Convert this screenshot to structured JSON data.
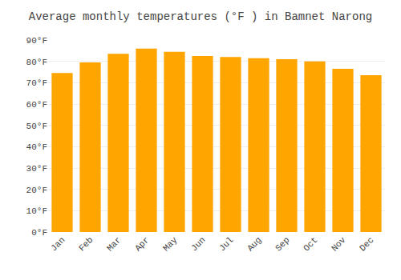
{
  "chart_data": {
    "type": "bar",
    "title": "Average monthly temperatures (°F ) in Bamnet Narong",
    "categories": [
      "Jan",
      "Feb",
      "Mar",
      "Apr",
      "May",
      "Jun",
      "Jul",
      "Aug",
      "Sep",
      "Oct",
      "Nov",
      "Dec"
    ],
    "values": [
      74.5,
      79.5,
      83.5,
      86.0,
      84.5,
      82.5,
      82.0,
      81.5,
      81.0,
      80.0,
      76.5,
      73.5
    ],
    "color": "#FFA500",
    "ylim": [
      0,
      90
    ],
    "yticks": [
      {
        "value": 0,
        "label": "0°F"
      },
      {
        "value": 10,
        "label": "10°F"
      },
      {
        "value": 20,
        "label": "20°F"
      },
      {
        "value": 30,
        "label": "30°F"
      },
      {
        "value": 40,
        "label": "40°F"
      },
      {
        "value": 50,
        "label": "50°F"
      },
      {
        "value": 60,
        "label": "60°F"
      },
      {
        "value": 70,
        "label": "70°F"
      },
      {
        "value": 80,
        "label": "80°F"
      },
      {
        "value": 90,
        "label": "90°F"
      }
    ],
    "grid": true
  }
}
